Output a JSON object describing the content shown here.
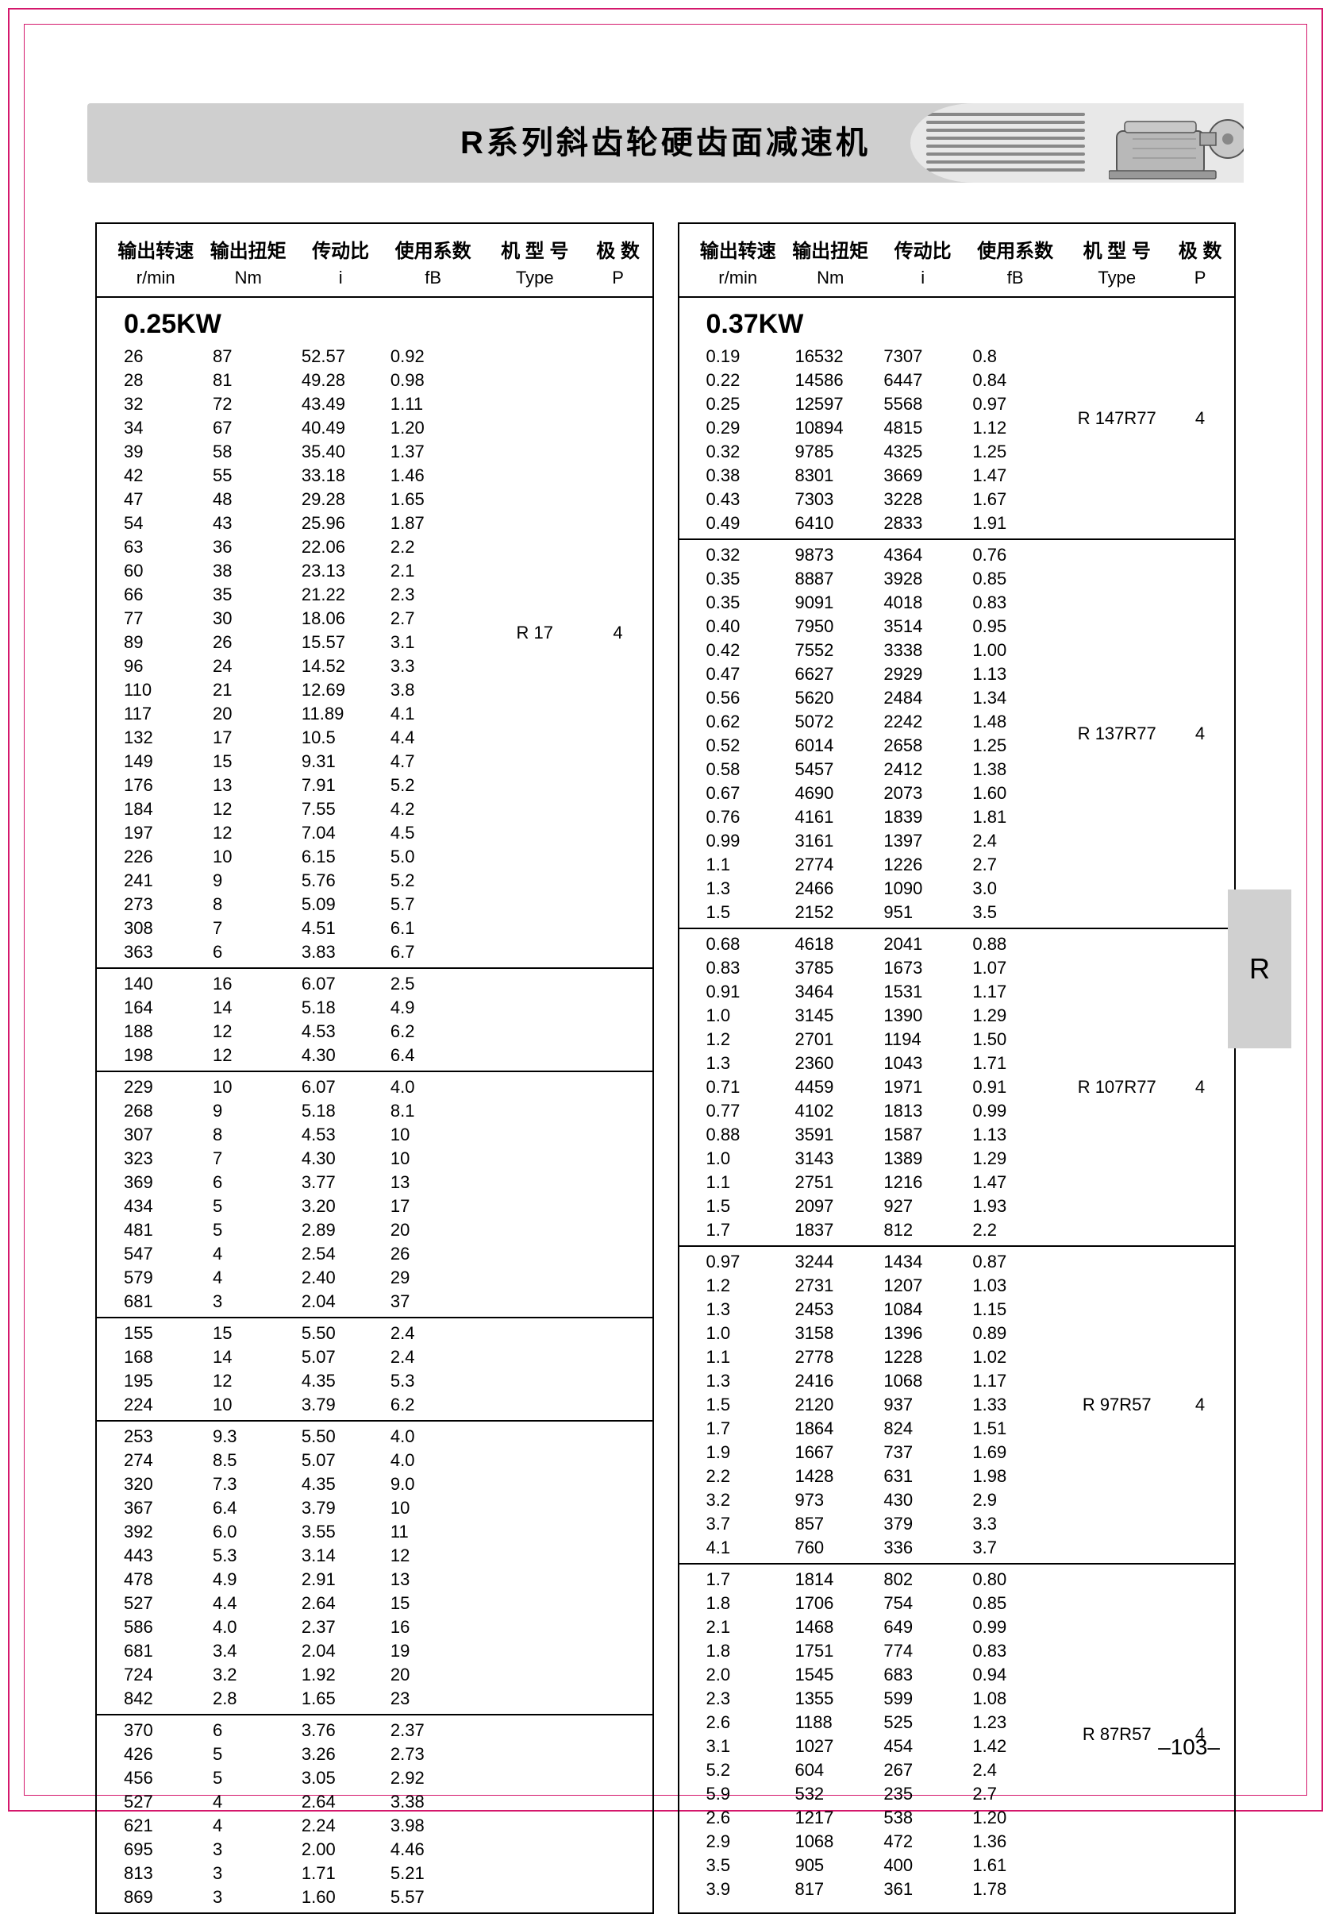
{
  "title": "R系列斜齿轮硬齿面减速机",
  "side_tab": "R",
  "page_number": "–103–",
  "headers": {
    "c1": "输出转速",
    "c1sub": "r/min",
    "c2": "输出扭矩",
    "c2sub": "Nm",
    "c3": "传动比",
    "c3sub": "i",
    "c4": "使用系数",
    "c4sub": "fB",
    "c5": "机 型 号",
    "c5sub": "Type",
    "c6": "极 数",
    "c6sub": "P"
  },
  "left": {
    "kw": "0.25KW",
    "groups": [
      {
        "type": "R  17",
        "p": "4",
        "rows": [
          [
            "26",
            "87",
            "52.57",
            "0.92"
          ],
          [
            "28",
            "81",
            "49.28",
            "0.98"
          ],
          [
            "32",
            "72",
            "43.49",
            "1.11"
          ],
          [
            "34",
            "67",
            "40.49",
            "1.20"
          ],
          [
            "39",
            "58",
            "35.40",
            "1.37"
          ],
          [
            "42",
            "55",
            "33.18",
            "1.46"
          ],
          [
            "47",
            "48",
            "29.28",
            "1.65"
          ],
          [
            "54",
            "43",
            "25.96",
            "1.87"
          ],
          [
            "63",
            "36",
            "22.06",
            "2.2"
          ],
          [
            "60",
            "38",
            "23.13",
            "2.1"
          ],
          [
            "66",
            "35",
            "21.22",
            "2.3"
          ],
          [
            "77",
            "30",
            "18.06",
            "2.7"
          ],
          [
            "89",
            "26",
            "15.57",
            "3.1"
          ],
          [
            "96",
            "24",
            "14.52",
            "3.3"
          ],
          [
            "110",
            "21",
            "12.69",
            "3.8"
          ],
          [
            "117",
            "20",
            "11.89",
            "4.1"
          ],
          [
            "132",
            "17",
            "10.5",
            "4.4"
          ],
          [
            "149",
            "15",
            "9.31",
            "4.7"
          ],
          [
            "176",
            "13",
            "7.91",
            "5.2"
          ],
          [
            "184",
            "12",
            "7.55",
            "4.2"
          ],
          [
            "197",
            "12",
            "7.04",
            "4.5"
          ],
          [
            "226",
            "10",
            "6.15",
            "5.0"
          ],
          [
            "241",
            "9",
            "5.76",
            "5.2"
          ],
          [
            "273",
            "8",
            "5.09",
            "5.7"
          ],
          [
            "308",
            "7",
            "4.51",
            "6.1"
          ],
          [
            "363",
            "6",
            "3.83",
            "6.7"
          ]
        ]
      },
      {
        "type": "",
        "p": "",
        "rows": [
          [
            "140",
            "16",
            "6.07",
            "2.5"
          ],
          [
            "164",
            "14",
            "5.18",
            "4.9"
          ],
          [
            "188",
            "12",
            "4.53",
            "6.2"
          ],
          [
            "198",
            "12",
            "4.30",
            "6.4"
          ]
        ]
      },
      {
        "type": "",
        "p": "",
        "rows": [
          [
            "229",
            "10",
            "6.07",
            "4.0"
          ],
          [
            "268",
            "9",
            "5.18",
            "8.1"
          ],
          [
            "307",
            "8",
            "4.53",
            "10"
          ],
          [
            "323",
            "7",
            "4.30",
            "10"
          ],
          [
            "369",
            "6",
            "3.77",
            "13"
          ],
          [
            "434",
            "5",
            "3.20",
            "17"
          ],
          [
            "481",
            "5",
            "2.89",
            "20"
          ],
          [
            "547",
            "4",
            "2.54",
            "26"
          ],
          [
            "579",
            "4",
            "2.40",
            "29"
          ],
          [
            "681",
            "3",
            "2.04",
            "37"
          ]
        ]
      },
      {
        "type": "",
        "p": "",
        "rows": [
          [
            "155",
            "15",
            "5.50",
            "2.4"
          ],
          [
            "168",
            "14",
            "5.07",
            "2.4"
          ],
          [
            "195",
            "12",
            "4.35",
            "5.3"
          ],
          [
            "224",
            "10",
            "3.79",
            "6.2"
          ]
        ]
      },
      {
        "type": "",
        "p": "",
        "rows": [
          [
            "253",
            "9.3",
            "5.50",
            "4.0"
          ],
          [
            "274",
            "8.5",
            "5.07",
            "4.0"
          ],
          [
            "320",
            "7.3",
            "4.35",
            "9.0"
          ],
          [
            "367",
            "6.4",
            "3.79",
            "10"
          ],
          [
            "392",
            "6.0",
            "3.55",
            "11"
          ],
          [
            "443",
            "5.3",
            "3.14",
            "12"
          ],
          [
            "478",
            "4.9",
            "2.91",
            "13"
          ],
          [
            "527",
            "4.4",
            "2.64",
            "15"
          ],
          [
            "586",
            "4.0",
            "2.37",
            "16"
          ],
          [
            "681",
            "3.4",
            "2.04",
            "19"
          ],
          [
            "724",
            "3.2",
            "1.92",
            "20"
          ],
          [
            "842",
            "2.8",
            "1.65",
            "23"
          ]
        ]
      },
      {
        "type": "",
        "p": "",
        "rows": [
          [
            "370",
            "6",
            "3.76",
            "2.37"
          ],
          [
            "426",
            "5",
            "3.26",
            "2.73"
          ],
          [
            "456",
            "5",
            "3.05",
            "2.92"
          ],
          [
            "527",
            "4",
            "2.64",
            "3.38"
          ],
          [
            "621",
            "4",
            "2.24",
            "3.98"
          ],
          [
            "695",
            "3",
            "2.00",
            "4.46"
          ],
          [
            "813",
            "3",
            "1.71",
            "5.21"
          ],
          [
            "869",
            "3",
            "1.60",
            "5.57"
          ]
        ]
      }
    ]
  },
  "right": {
    "kw": "0.37KW",
    "groups": [
      {
        "type": "R  147R77",
        "p": "4",
        "rows": [
          [
            "0.19",
            "16532",
            "7307",
            "0.8"
          ],
          [
            "0.22",
            "14586",
            "6447",
            "0.84"
          ],
          [
            "0.25",
            "12597",
            "5568",
            "0.97"
          ],
          [
            "0.29",
            "10894",
            "4815",
            "1.12"
          ],
          [
            "0.32",
            "9785",
            "4325",
            "1.25"
          ],
          [
            "0.38",
            "8301",
            "3669",
            "1.47"
          ],
          [
            "0.43",
            "7303",
            "3228",
            "1.67"
          ],
          [
            "0.49",
            "6410",
            "2833",
            "1.91"
          ]
        ]
      },
      {
        "type": "R  137R77",
        "p": "4",
        "rows": [
          [
            "0.32",
            "9873",
            "4364",
            "0.76"
          ],
          [
            "0.35",
            "8887",
            "3928",
            "0.85"
          ],
          [
            "0.35",
            "9091",
            "4018",
            "0.83"
          ],
          [
            "0.40",
            "7950",
            "3514",
            "0.95"
          ],
          [
            "0.42",
            "7552",
            "3338",
            "1.00"
          ],
          [
            "0.47",
            "6627",
            "2929",
            "1.13"
          ],
          [
            "0.56",
            "5620",
            "2484",
            "1.34"
          ],
          [
            "0.62",
            "5072",
            "2242",
            "1.48"
          ],
          [
            "0.52",
            "6014",
            "2658",
            "1.25"
          ],
          [
            "0.58",
            "5457",
            "2412",
            "1.38"
          ],
          [
            "0.67",
            "4690",
            "2073",
            "1.60"
          ],
          [
            "0.76",
            "4161",
            "1839",
            "1.81"
          ],
          [
            "0.99",
            "3161",
            "1397",
            "2.4"
          ],
          [
            "1.1",
            "2774",
            "1226",
            "2.7"
          ],
          [
            "1.3",
            "2466",
            "1090",
            "3.0"
          ],
          [
            "1.5",
            "2152",
            "951",
            "3.5"
          ]
        ]
      },
      {
        "type": "R  107R77",
        "p": "4",
        "rows": [
          [
            "0.68",
            "4618",
            "2041",
            "0.88"
          ],
          [
            "0.83",
            "3785",
            "1673",
            "1.07"
          ],
          [
            "0.91",
            "3464",
            "1531",
            "1.17"
          ],
          [
            "1.0",
            "3145",
            "1390",
            "1.29"
          ],
          [
            "1.2",
            "2701",
            "1194",
            "1.50"
          ],
          [
            "1.3",
            "2360",
            "1043",
            "1.71"
          ],
          [
            "0.71",
            "4459",
            "1971",
            "0.91"
          ],
          [
            "0.77",
            "4102",
            "1813",
            "0.99"
          ],
          [
            "0.88",
            "3591",
            "1587",
            "1.13"
          ],
          [
            "1.0",
            "3143",
            "1389",
            "1.29"
          ],
          [
            "1.1",
            "2751",
            "1216",
            "1.47"
          ],
          [
            "1.5",
            "2097",
            "927",
            "1.93"
          ],
          [
            "1.7",
            "1837",
            "812",
            "2.2"
          ]
        ]
      },
      {
        "type": "R  97R57",
        "p": "4",
        "rows": [
          [
            "0.97",
            "3244",
            "1434",
            "0.87"
          ],
          [
            "1.2",
            "2731",
            "1207",
            "1.03"
          ],
          [
            "1.3",
            "2453",
            "1084",
            "1.15"
          ],
          [
            "1.0",
            "3158",
            "1396",
            "0.89"
          ],
          [
            "1.1",
            "2778",
            "1228",
            "1.02"
          ],
          [
            "1.3",
            "2416",
            "1068",
            "1.17"
          ],
          [
            "1.5",
            "2120",
            "937",
            "1.33"
          ],
          [
            "1.7",
            "1864",
            "824",
            "1.51"
          ],
          [
            "1.9",
            "1667",
            "737",
            "1.69"
          ],
          [
            "2.2",
            "1428",
            "631",
            "1.98"
          ],
          [
            "3.2",
            "973",
            "430",
            "2.9"
          ],
          [
            "3.7",
            "857",
            "379",
            "3.3"
          ],
          [
            "4.1",
            "760",
            "336",
            "3.7"
          ]
        ]
      },
      {
        "type": "R  87R57",
        "p": "4",
        "rows": [
          [
            "1.7",
            "1814",
            "802",
            "0.80"
          ],
          [
            "1.8",
            "1706",
            "754",
            "0.85"
          ],
          [
            "2.1",
            "1468",
            "649",
            "0.99"
          ],
          [
            "1.8",
            "1751",
            "774",
            "0.83"
          ],
          [
            "2.0",
            "1545",
            "683",
            "0.94"
          ],
          [
            "2.3",
            "1355",
            "599",
            "1.08"
          ],
          [
            "2.6",
            "1188",
            "525",
            "1.23"
          ],
          [
            "3.1",
            "1027",
            "454",
            "1.42"
          ],
          [
            "5.2",
            "604",
            "267",
            "2.4"
          ],
          [
            "5.9",
            "532",
            "235",
            "2.7"
          ],
          [
            "2.6",
            "1217",
            "538",
            "1.20"
          ],
          [
            "2.9",
            "1068",
            "472",
            "1.36"
          ],
          [
            "3.5",
            "905",
            "400",
            "1.61"
          ],
          [
            "3.9",
            "817",
            "361",
            "1.78"
          ]
        ]
      }
    ]
  },
  "colors": {
    "border": "#d4186c",
    "header_bg": "#cfcfcf",
    "tab_bg": "#d0d0d0"
  }
}
